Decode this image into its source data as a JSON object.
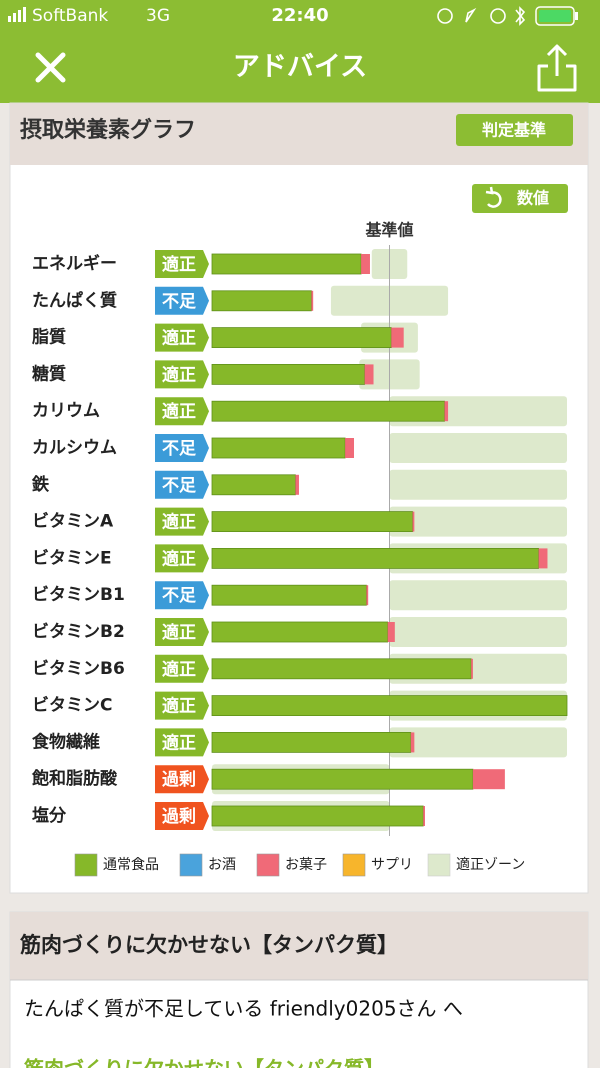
{
  "status_bar": {
    "carrier": "SoftBank",
    "network": "3G",
    "time": "22:40"
  },
  "header": {
    "title": "アドバイス"
  },
  "graph_card": {
    "title": "摂取栄養素グラフ",
    "criteria_button": "判定基準",
    "value_button": "数値"
  },
  "chart_data": {
    "type": "stacked-bar-horizontal",
    "categories": [
      "エネルギー",
      "たんぱく質",
      "脂質",
      "糖質",
      "カリウム",
      "カルシウム",
      "鉄",
      "ビタミンA",
      "ビタミンE",
      "ビタミンB1",
      "ビタミンB2",
      "ビタミンB6",
      "ビタミンC",
      "食物繊維",
      "飽和脂肪酸",
      "塩分"
    ],
    "statuses": [
      "適正",
      "不足",
      "適正",
      "適正",
      "適正",
      "不足",
      "不足",
      "適正",
      "適正",
      "不足",
      "適正",
      "適正",
      "適正",
      "適正",
      "過剰",
      "過剰"
    ],
    "status_palette": {
      "適正": "#86b829",
      "不足": "#3b9bd8",
      "過剰": "#f0531f"
    },
    "series": [
      {
        "name": "通常食品",
        "color": "#86b829",
        "values": [
          84,
          56,
          101,
          86,
          131,
          75,
          47,
          113,
          184,
          87,
          99,
          146,
          200,
          112,
          147,
          119
        ]
      },
      {
        "name": "お酒",
        "color": "#4aa3dc",
        "values": [
          0,
          0,
          0,
          0,
          0,
          0,
          0,
          0,
          0,
          0,
          0,
          0,
          0,
          0,
          0,
          0
        ]
      },
      {
        "name": "お菓子",
        "color": "#f06a78",
        "values": [
          5,
          1,
          7,
          5,
          2,
          5,
          2,
          1,
          5,
          1,
          4,
          1,
          0,
          2,
          18,
          1
        ]
      },
      {
        "name": "サプリ",
        "color": "#f7b52c",
        "values": [
          0,
          0,
          0,
          0,
          0,
          0,
          0,
          0,
          0,
          0,
          0,
          0,
          0,
          0,
          0,
          0
        ]
      }
    ],
    "zone_name": "適正ゾーン",
    "zone_color": "#dde9cc",
    "zone_low": [
      90,
      67,
      84,
      83,
      100,
      100,
      100,
      100,
      100,
      100,
      100,
      100,
      100,
      100,
      0,
      0
    ],
    "zone_high": [
      110,
      133,
      116,
      117,
      200,
      200,
      200,
      200,
      200,
      200,
      200,
      200,
      200,
      200,
      100,
      100
    ],
    "xlim": [
      0,
      200
    ],
    "reference": {
      "value": 100,
      "label": "基準値"
    }
  },
  "article_card": {
    "title": "筋肉づくりに欠かせない【タンパク質】",
    "greeting": "たんぱく質が不足している friendly0205さん へ",
    "heading": "筋肉づくりに欠かせない【タンパク質】"
  }
}
